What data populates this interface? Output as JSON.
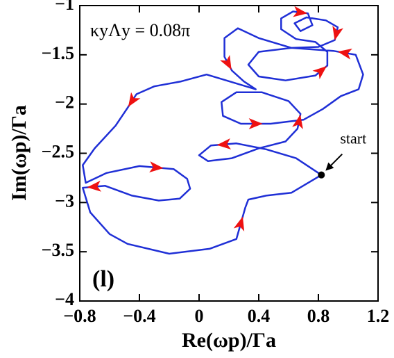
{
  "chart_data": {
    "type": "line",
    "annotation": "κyΛy = 0.08π",
    "panel_label": "(l)",
    "start_label": "start",
    "x_label": "Re(ωp)/Γa",
    "y_label": "Im(ωp)/Γa",
    "color": "#1f2fd6",
    "arrow_color": "#ee1111",
    "x": [
      0.82,
      0.65,
      0.45,
      0.25,
      0.08,
      0.0,
      0.06,
      0.22,
      0.4,
      0.58,
      0.66,
      0.68,
      0.6,
      0.42,
      0.25,
      0.15,
      0.16,
      0.28,
      0.48,
      0.7,
      0.83,
      0.95,
      1.07,
      1.1,
      1.05,
      0.9,
      0.62,
      0.4,
      0.33,
      0.4,
      0.58,
      0.78,
      0.86,
      0.86,
      0.78,
      0.65,
      0.55,
      0.55,
      0.63,
      0.73,
      0.76,
      0.68,
      0.64,
      0.72,
      0.85,
      0.93,
      0.91,
      0.8,
      0.62,
      0.4,
      0.26,
      0.17,
      0.17,
      0.22,
      0.3,
      0.38,
      0.05,
      -0.12,
      -0.3,
      -0.42,
      -0.48,
      -0.56,
      -0.7,
      -0.78,
      -0.76,
      -0.62,
      -0.4,
      -0.17,
      -0.08,
      -0.06,
      -0.13,
      -0.27,
      -0.45,
      -0.63,
      -0.78,
      -0.73,
      -0.6,
      -0.48,
      -0.2,
      0.07,
      0.25,
      0.31,
      0.33,
      0.45,
      0.62,
      0.82
    ],
    "values": [
      -2.72,
      -2.55,
      -2.46,
      -2.4,
      -2.42,
      -2.52,
      -2.58,
      -2.55,
      -2.45,
      -2.38,
      -2.25,
      -2.1,
      -1.97,
      -1.88,
      -1.88,
      -1.98,
      -2.12,
      -2.2,
      -2.2,
      -2.16,
      -2.05,
      -1.92,
      -1.85,
      -1.7,
      -1.5,
      -1.46,
      -1.43,
      -1.47,
      -1.6,
      -1.72,
      -1.76,
      -1.71,
      -1.61,
      -1.47,
      -1.37,
      -1.34,
      -1.24,
      -1.13,
      -1.06,
      -1.08,
      -1.2,
      -1.26,
      -1.18,
      -1.12,
      -1.15,
      -1.22,
      -1.35,
      -1.42,
      -1.43,
      -1.33,
      -1.23,
      -1.33,
      -1.52,
      -1.66,
      -1.77,
      -1.85,
      -1.7,
      -1.77,
      -1.82,
      -1.9,
      -2.04,
      -2.22,
      -2.45,
      -2.62,
      -2.8,
      -2.7,
      -2.63,
      -2.66,
      -2.76,
      -2.86,
      -2.96,
      -2.98,
      -2.93,
      -2.83,
      -2.85,
      -3.1,
      -3.32,
      -3.42,
      -3.52,
      -3.47,
      -3.37,
      -3.05,
      -2.97,
      -2.93,
      -2.9,
      -2.72
    ],
    "xlim": [
      -0.8,
      1.2
    ],
    "ylim": [
      -4,
      -1
    ],
    "xticks": [
      {
        "value": -0.8,
        "label": "−0.8"
      },
      {
        "value": -0.4,
        "label": "−0.4"
      },
      0,
      0.4,
      0.8,
      1.2
    ],
    "yticks": [
      {
        "value": -1,
        "label": "−1"
      },
      {
        "value": -1.5,
        "label": "−1.5"
      },
      {
        "value": -2,
        "label": "−2"
      },
      {
        "value": -2.5,
        "label": "−2.5"
      },
      {
        "value": -3,
        "label": "−3"
      },
      {
        "value": -3.5,
        "label": "−3.5"
      },
      {
        "value": -4,
        "label": "−4"
      }
    ]
  }
}
